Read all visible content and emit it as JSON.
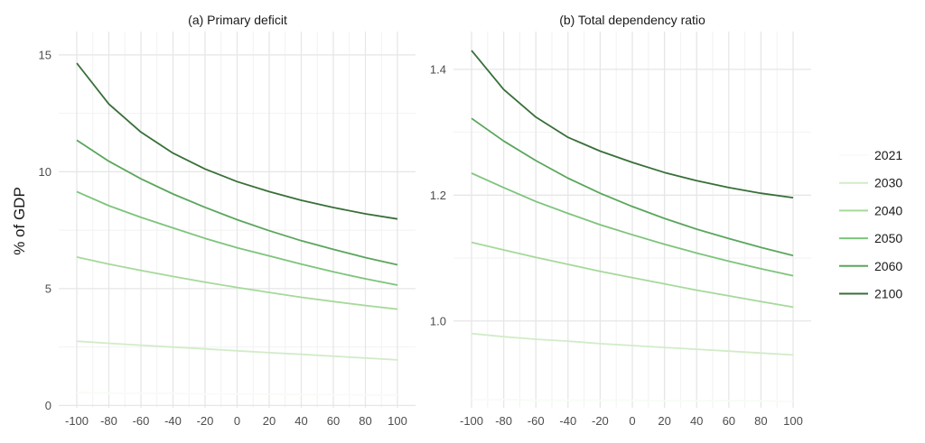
{
  "figure": {
    "ylabel": "% of GDP",
    "legend_colors": [
      "#f7fcf5",
      "#d1ecc8",
      "#a6d99a",
      "#7dc47b",
      "#5aa65c",
      "#386f38"
    ]
  },
  "chart_data": [
    {
      "type": "line",
      "title": "(a) Primary deficit",
      "xlabel": "",
      "ylabel": "% of GDP",
      "x": [
        -100,
        -80,
        -60,
        -40,
        -20,
        0,
        20,
        40,
        60,
        80,
        100
      ],
      "xticks": [
        "-100",
        "-80",
        "-60",
        "-40",
        "-20",
        "0",
        "20",
        "40",
        "60",
        "80",
        "100"
      ],
      "xlim": [
        -100,
        100
      ],
      "ylim": [
        -0.1,
        16.0
      ],
      "yticks": [
        0,
        5,
        10,
        15
      ],
      "ytick_labels": [
        "0",
        "5",
        "10",
        "15"
      ],
      "grid": true,
      "legend_position": "right",
      "series": [
        {
          "name": "2021",
          "values": [
            0.55,
            0.53,
            0.52,
            0.51,
            0.5,
            0.49,
            0.48,
            0.47,
            0.46,
            0.45,
            0.45
          ]
        },
        {
          "name": "2030",
          "values": [
            2.75,
            2.66,
            2.58,
            2.5,
            2.42,
            2.34,
            2.26,
            2.19,
            2.11,
            2.03,
            1.95
          ]
        },
        {
          "name": "2040",
          "values": [
            6.35,
            6.05,
            5.78,
            5.52,
            5.28,
            5.05,
            4.84,
            4.63,
            4.45,
            4.28,
            4.12
          ]
        },
        {
          "name": "2050",
          "values": [
            9.15,
            8.55,
            8.05,
            7.6,
            7.15,
            6.75,
            6.4,
            6.05,
            5.72,
            5.42,
            5.15
          ]
        },
        {
          "name": "2060",
          "values": [
            11.35,
            10.45,
            9.7,
            9.05,
            8.48,
            7.95,
            7.48,
            7.05,
            6.68,
            6.33,
            6.02
          ]
        },
        {
          "name": "2100",
          "values": [
            14.65,
            12.9,
            11.7,
            10.8,
            10.12,
            9.58,
            9.15,
            8.78,
            8.47,
            8.2,
            7.98
          ]
        }
      ]
    },
    {
      "type": "line",
      "title": "(b) Total dependency ratio",
      "xlabel": "",
      "ylabel": "",
      "x": [
        -100,
        -80,
        -60,
        -40,
        -20,
        0,
        20,
        40,
        60,
        80,
        100
      ],
      "xticks": [
        "-100",
        "-80",
        "-60",
        "-40",
        "-20",
        "0",
        "20",
        "40",
        "60",
        "80",
        "100"
      ],
      "xlim": [
        -100,
        100
      ],
      "ylim": [
        0.862,
        1.46
      ],
      "yticks": [
        1.0,
        1.2,
        1.4
      ],
      "ytick_labels": [
        "1.0",
        "1.2",
        "1.4"
      ],
      "grid": true,
      "legend_position": "right",
      "series": [
        {
          "name": "2021",
          "values": [
            0.875,
            0.875,
            0.874,
            0.874,
            0.874,
            0.874,
            0.873,
            0.873,
            0.873,
            0.873,
            0.872
          ]
        },
        {
          "name": "2030",
          "values": [
            0.98,
            0.975,
            0.971,
            0.968,
            0.964,
            0.961,
            0.958,
            0.955,
            0.952,
            0.949,
            0.946
          ]
        },
        {
          "name": "2040",
          "values": [
            1.125,
            1.113,
            1.101,
            1.09,
            1.079,
            1.069,
            1.059,
            1.049,
            1.04,
            1.031,
            1.022
          ]
        },
        {
          "name": "2050",
          "values": [
            1.235,
            1.212,
            1.19,
            1.171,
            1.153,
            1.137,
            1.122,
            1.108,
            1.095,
            1.083,
            1.072
          ]
        },
        {
          "name": "2060",
          "values": [
            1.322,
            1.286,
            1.255,
            1.227,
            1.203,
            1.182,
            1.163,
            1.146,
            1.131,
            1.117,
            1.104
          ]
        },
        {
          "name": "2100",
          "values": [
            1.43,
            1.368,
            1.324,
            1.292,
            1.27,
            1.252,
            1.236,
            1.223,
            1.212,
            1.203,
            1.196
          ]
        }
      ]
    }
  ]
}
